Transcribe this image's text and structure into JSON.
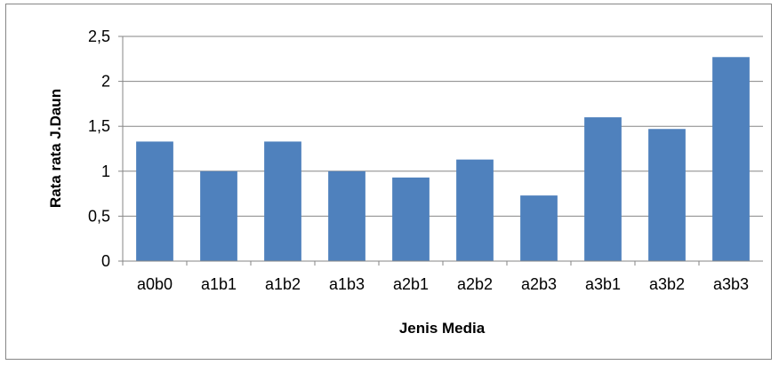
{
  "chart_data": {
    "type": "bar",
    "title": "",
    "xlabel": "Jenis Media",
    "ylabel": "Rata rata J.Daun",
    "categories": [
      "a0b0",
      "a1b1",
      "a1b2",
      "a1b3",
      "a2b1",
      "a2b2",
      "a2b3",
      "a3b1",
      "a3b2",
      "a3b3"
    ],
    "values": [
      1.33,
      1.0,
      1.33,
      1.0,
      0.93,
      1.13,
      0.73,
      1.6,
      1.47,
      2.27
    ],
    "ylim": [
      0,
      2.5
    ],
    "yticks": [
      "0",
      "0,5",
      "1",
      "1,5",
      "2",
      "2,5"
    ],
    "grid": true,
    "legend": "none",
    "colors": {
      "bar": "#4F81BD",
      "grid": "#868686",
      "axis": "#868686"
    }
  }
}
